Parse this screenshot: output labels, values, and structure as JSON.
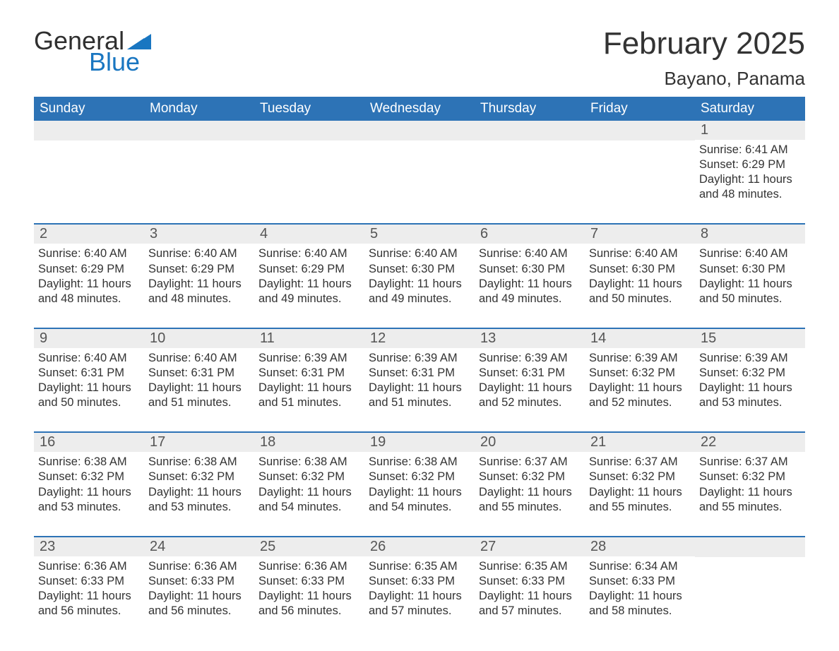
{
  "logo": {
    "text_general": "General",
    "text_blue": "Blue",
    "flag_color": "#1976c1"
  },
  "header": {
    "month_title": "February 2025",
    "location": "Bayano, Panama"
  },
  "colors": {
    "header_bg": "#2d73b6",
    "header_text": "#ffffff",
    "row_divider": "#2d73b6",
    "daynum_bg": "#ededed",
    "body_text": "#333333",
    "page_bg": "#ffffff"
  },
  "typography": {
    "month_title_fontsize": 44,
    "location_fontsize": 26,
    "day_header_fontsize": 19,
    "daynum_fontsize": 20,
    "detail_fontsize": 16.5,
    "font_family": "Segoe UI"
  },
  "day_names": [
    "Sunday",
    "Monday",
    "Tuesday",
    "Wednesday",
    "Thursday",
    "Friday",
    "Saturday"
  ],
  "weeks": [
    [
      null,
      null,
      null,
      null,
      null,
      null,
      {
        "n": "1",
        "sunrise": "Sunrise: 6:41 AM",
        "sunset": "Sunset: 6:29 PM",
        "daylight": "Daylight: 11 hours and 48 minutes."
      }
    ],
    [
      {
        "n": "2",
        "sunrise": "Sunrise: 6:40 AM",
        "sunset": "Sunset: 6:29 PM",
        "daylight": "Daylight: 11 hours and 48 minutes."
      },
      {
        "n": "3",
        "sunrise": "Sunrise: 6:40 AM",
        "sunset": "Sunset: 6:29 PM",
        "daylight": "Daylight: 11 hours and 48 minutes."
      },
      {
        "n": "4",
        "sunrise": "Sunrise: 6:40 AM",
        "sunset": "Sunset: 6:29 PM",
        "daylight": "Daylight: 11 hours and 49 minutes."
      },
      {
        "n": "5",
        "sunrise": "Sunrise: 6:40 AM",
        "sunset": "Sunset: 6:30 PM",
        "daylight": "Daylight: 11 hours and 49 minutes."
      },
      {
        "n": "6",
        "sunrise": "Sunrise: 6:40 AM",
        "sunset": "Sunset: 6:30 PM",
        "daylight": "Daylight: 11 hours and 49 minutes."
      },
      {
        "n": "7",
        "sunrise": "Sunrise: 6:40 AM",
        "sunset": "Sunset: 6:30 PM",
        "daylight": "Daylight: 11 hours and 50 minutes."
      },
      {
        "n": "8",
        "sunrise": "Sunrise: 6:40 AM",
        "sunset": "Sunset: 6:30 PM",
        "daylight": "Daylight: 11 hours and 50 minutes."
      }
    ],
    [
      {
        "n": "9",
        "sunrise": "Sunrise: 6:40 AM",
        "sunset": "Sunset: 6:31 PM",
        "daylight": "Daylight: 11 hours and 50 minutes."
      },
      {
        "n": "10",
        "sunrise": "Sunrise: 6:40 AM",
        "sunset": "Sunset: 6:31 PM",
        "daylight": "Daylight: 11 hours and 51 minutes."
      },
      {
        "n": "11",
        "sunrise": "Sunrise: 6:39 AM",
        "sunset": "Sunset: 6:31 PM",
        "daylight": "Daylight: 11 hours and 51 minutes."
      },
      {
        "n": "12",
        "sunrise": "Sunrise: 6:39 AM",
        "sunset": "Sunset: 6:31 PM",
        "daylight": "Daylight: 11 hours and 51 minutes."
      },
      {
        "n": "13",
        "sunrise": "Sunrise: 6:39 AM",
        "sunset": "Sunset: 6:31 PM",
        "daylight": "Daylight: 11 hours and 52 minutes."
      },
      {
        "n": "14",
        "sunrise": "Sunrise: 6:39 AM",
        "sunset": "Sunset: 6:32 PM",
        "daylight": "Daylight: 11 hours and 52 minutes."
      },
      {
        "n": "15",
        "sunrise": "Sunrise: 6:39 AM",
        "sunset": "Sunset: 6:32 PM",
        "daylight": "Daylight: 11 hours and 53 minutes."
      }
    ],
    [
      {
        "n": "16",
        "sunrise": "Sunrise: 6:38 AM",
        "sunset": "Sunset: 6:32 PM",
        "daylight": "Daylight: 11 hours and 53 minutes."
      },
      {
        "n": "17",
        "sunrise": "Sunrise: 6:38 AM",
        "sunset": "Sunset: 6:32 PM",
        "daylight": "Daylight: 11 hours and 53 minutes."
      },
      {
        "n": "18",
        "sunrise": "Sunrise: 6:38 AM",
        "sunset": "Sunset: 6:32 PM",
        "daylight": "Daylight: 11 hours and 54 minutes."
      },
      {
        "n": "19",
        "sunrise": "Sunrise: 6:38 AM",
        "sunset": "Sunset: 6:32 PM",
        "daylight": "Daylight: 11 hours and 54 minutes."
      },
      {
        "n": "20",
        "sunrise": "Sunrise: 6:37 AM",
        "sunset": "Sunset: 6:32 PM",
        "daylight": "Daylight: 11 hours and 55 minutes."
      },
      {
        "n": "21",
        "sunrise": "Sunrise: 6:37 AM",
        "sunset": "Sunset: 6:32 PM",
        "daylight": "Daylight: 11 hours and 55 minutes."
      },
      {
        "n": "22",
        "sunrise": "Sunrise: 6:37 AM",
        "sunset": "Sunset: 6:32 PM",
        "daylight": "Daylight: 11 hours and 55 minutes."
      }
    ],
    [
      {
        "n": "23",
        "sunrise": "Sunrise: 6:36 AM",
        "sunset": "Sunset: 6:33 PM",
        "daylight": "Daylight: 11 hours and 56 minutes."
      },
      {
        "n": "24",
        "sunrise": "Sunrise: 6:36 AM",
        "sunset": "Sunset: 6:33 PM",
        "daylight": "Daylight: 11 hours and 56 minutes."
      },
      {
        "n": "25",
        "sunrise": "Sunrise: 6:36 AM",
        "sunset": "Sunset: 6:33 PM",
        "daylight": "Daylight: 11 hours and 56 minutes."
      },
      {
        "n": "26",
        "sunrise": "Sunrise: 6:35 AM",
        "sunset": "Sunset: 6:33 PM",
        "daylight": "Daylight: 11 hours and 57 minutes."
      },
      {
        "n": "27",
        "sunrise": "Sunrise: 6:35 AM",
        "sunset": "Sunset: 6:33 PM",
        "daylight": "Daylight: 11 hours and 57 minutes."
      },
      {
        "n": "28",
        "sunrise": "Sunrise: 6:34 AM",
        "sunset": "Sunset: 6:33 PM",
        "daylight": "Daylight: 11 hours and 58 minutes."
      },
      null
    ]
  ]
}
